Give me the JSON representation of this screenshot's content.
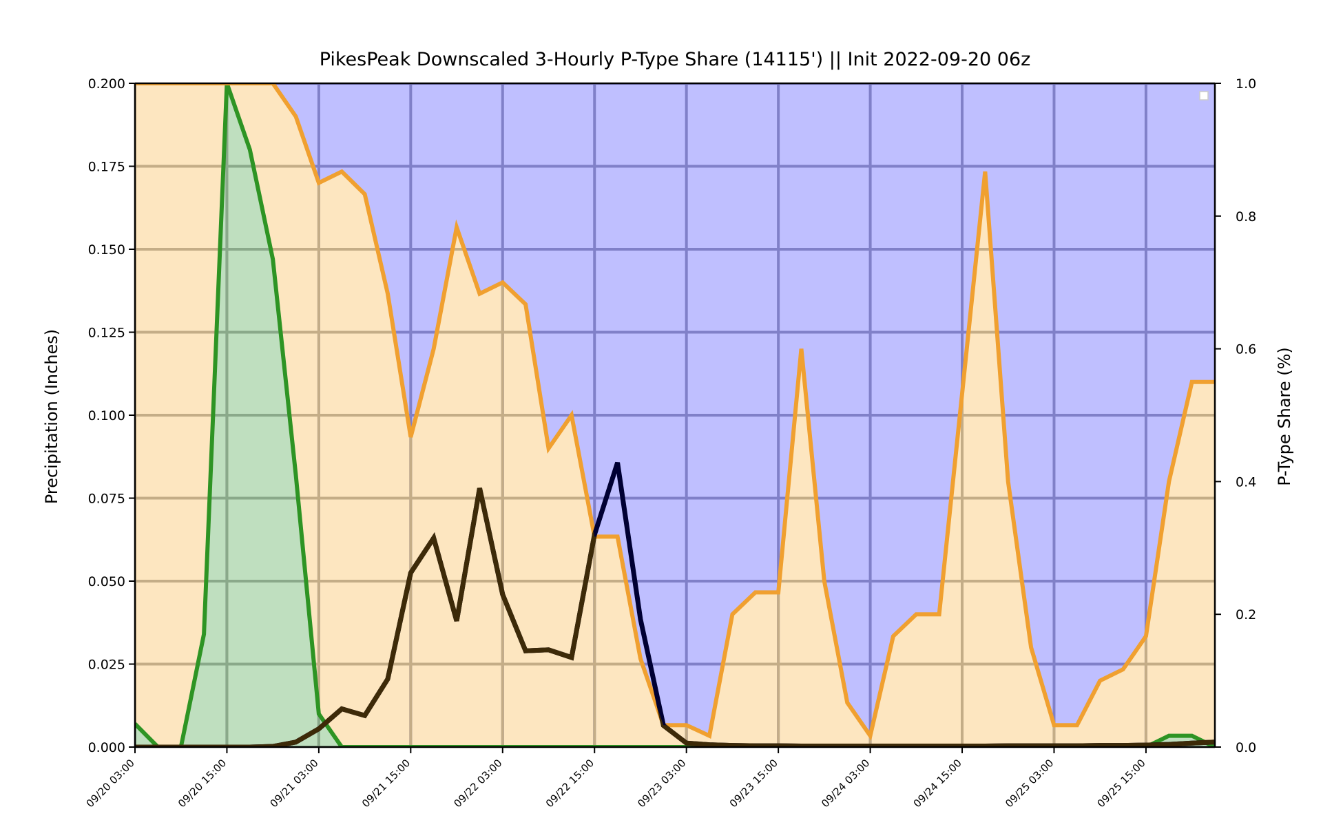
{
  "chart_data": {
    "type": "area",
    "title": "PikesPeak Downscaled 3-Hourly P-Type Share (14115') || Init 2022-09-20 06z",
    "ylabel_left": "Precipitation (Inches)",
    "ylabel_right": "P-Type Share (%)",
    "ylim_left": [
      0,
      0.2
    ],
    "ylim_right": [
      0,
      1.0
    ],
    "y_ticks_left": [
      "0.000",
      "0.025",
      "0.050",
      "0.075",
      "0.100",
      "0.125",
      "0.150",
      "0.175",
      "0.200"
    ],
    "y_ticks_right": [
      "0.0",
      "0.2",
      "0.4",
      "0.6",
      "0.8",
      "1.0"
    ],
    "x_tick_labels": [
      "09/20 03:00",
      "09/20 15:00",
      "09/21 03:00",
      "09/21 15:00",
      "09/22 03:00",
      "09/22 15:00",
      "09/23 03:00",
      "09/23 15:00",
      "09/24 03:00",
      "09/24 15:00",
      "09/25 03:00",
      "09/25 15:00"
    ],
    "x_tick_index": [
      0,
      4,
      8,
      12,
      16,
      20,
      24,
      28,
      32,
      36,
      40,
      44
    ],
    "n_steps": 48,
    "grid": true,
    "legend": "upper-right (empty)",
    "colors": {
      "snow_share_fill": "#bfbfff",
      "snow_grid": "#8080c8",
      "mix_share_fill": "#fde6c0",
      "mix_grid": "#c4ad87",
      "rain_share_fill": "#bfdfbf",
      "rain_grid": "#8aa98a",
      "mix_line": "#f0a030",
      "rain_line": "#2e9424",
      "precip_line": "#000033",
      "mix_precip_line": "#3d2a08"
    },
    "series": [
      {
        "role": "rain share (%)",
        "axis": "right",
        "color": "#2e9424",
        "values": [
          0.035,
          0,
          0,
          0.17,
          1.0,
          0.9,
          0.735,
          0.41,
          0.05,
          0,
          0,
          0,
          0,
          0,
          0,
          0,
          0,
          0,
          0,
          0,
          0,
          0,
          0,
          0,
          0,
          0,
          0,
          0,
          0,
          0,
          0,
          0,
          0,
          0,
          0,
          0,
          0,
          0,
          0,
          0,
          0,
          0,
          0,
          0,
          0,
          0.017,
          0.017,
          0
        ]
      },
      {
        "role": "rain + mix share (%)",
        "axis": "right",
        "color": "#f0a030",
        "values": [
          1.0,
          1.0,
          1.0,
          1.0,
          1.0,
          1.0,
          1.0,
          0.95,
          0.85,
          0.867,
          0.833,
          0.683,
          0.467,
          0.6,
          0.783,
          0.683,
          0.7,
          0.667,
          0.45,
          0.5,
          0.317,
          0.317,
          0.133,
          0.033,
          0.033,
          0.017,
          0.2,
          0.233,
          0.233,
          0.6,
          0.25,
          0.067,
          0.017,
          0.167,
          0.2,
          0.2,
          0.533,
          0.867,
          0.4,
          0.15,
          0.033,
          0.033,
          0.1,
          0.117,
          0.167,
          0.4,
          0.55,
          0.55
        ]
      },
      {
        "role": "total precipitation (inches)",
        "axis": "left",
        "color": "#000033",
        "values": [
          0,
          0,
          0,
          0,
          0,
          0,
          0.0002,
          0.0015,
          0.0055,
          0.0115,
          0.0095,
          0.0205,
          0.0525,
          0.063,
          0.038,
          0.078,
          0.046,
          0.029,
          0.0293,
          0.027,
          0.064,
          0.0857,
          0.0385,
          0.0065,
          0.0012,
          0.0007,
          0.0005,
          0.0004,
          0.0004,
          0.0003,
          0.0003,
          0.0003,
          0.0003,
          0.0003,
          0.0003,
          0.0003,
          0.0003,
          0.0003,
          0.0004,
          0.0004,
          0.0004,
          0.0004,
          0.0005,
          0.0005,
          0.0006,
          0.0008,
          0.0012,
          0.0015
        ]
      }
    ]
  }
}
